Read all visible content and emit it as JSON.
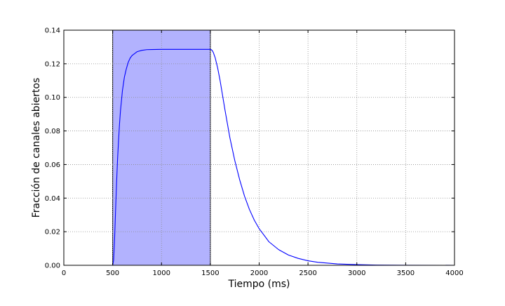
{
  "chart_data": {
    "type": "line",
    "title": "",
    "xlabel": "Tiempo (ms)",
    "ylabel": "Fracción de canales abiertos",
    "xlim": [
      0,
      4000
    ],
    "ylim": [
      0,
      0.14
    ],
    "xticks": [
      0,
      500,
      1000,
      1500,
      2000,
      2500,
      3000,
      3500,
      4000
    ],
    "xtick_labels": [
      "0",
      "500",
      "1000",
      "1500",
      "2000",
      "2500",
      "3000",
      "3500",
      "4000"
    ],
    "yticks": [
      0.0,
      0.02,
      0.04,
      0.06,
      0.08,
      0.1,
      0.12,
      0.14
    ],
    "ytick_labels": [
      "0.00",
      "0.02",
      "0.04",
      "0.06",
      "0.08",
      "0.10",
      "0.12",
      "0.14"
    ],
    "grid": true,
    "shaded_region": {
      "x": [
        500,
        1500
      ],
      "color": "#b2b2fe"
    },
    "series": [
      {
        "color": "#0000ff",
        "x": [
          0,
          480,
          500,
          510,
          520,
          530,
          540,
          550,
          560,
          570,
          580,
          600,
          620,
          640,
          660,
          680,
          700,
          750,
          800,
          850,
          900,
          1000,
          1100,
          1200,
          1300,
          1400,
          1500,
          1510,
          1520,
          1530,
          1550,
          1575,
          1600,
          1650,
          1700,
          1750,
          1800,
          1850,
          1900,
          1950,
          2000,
          2100,
          2200,
          2300,
          2400,
          2500,
          2600,
          2800,
          3000,
          3200,
          3500,
          4000
        ],
        "y": [
          0.0,
          0.0,
          0.0,
          0.003,
          0.016,
          0.033,
          0.049,
          0.063,
          0.074,
          0.084,
          0.092,
          0.104,
          0.112,
          0.117,
          0.121,
          0.1235,
          0.125,
          0.1272,
          0.128,
          0.1284,
          0.1285,
          0.1286,
          0.1286,
          0.1286,
          0.1286,
          0.1286,
          0.1286,
          0.1284,
          0.1278,
          0.1268,
          0.1235,
          0.1175,
          0.11,
          0.0925,
          0.076,
          0.0625,
          0.051,
          0.0412,
          0.0333,
          0.0269,
          0.0218,
          0.014,
          0.0093,
          0.0061,
          0.0041,
          0.0027,
          0.0018,
          0.0008,
          0.0004,
          0.00015,
          3e-05,
          0.0
        ]
      }
    ]
  }
}
